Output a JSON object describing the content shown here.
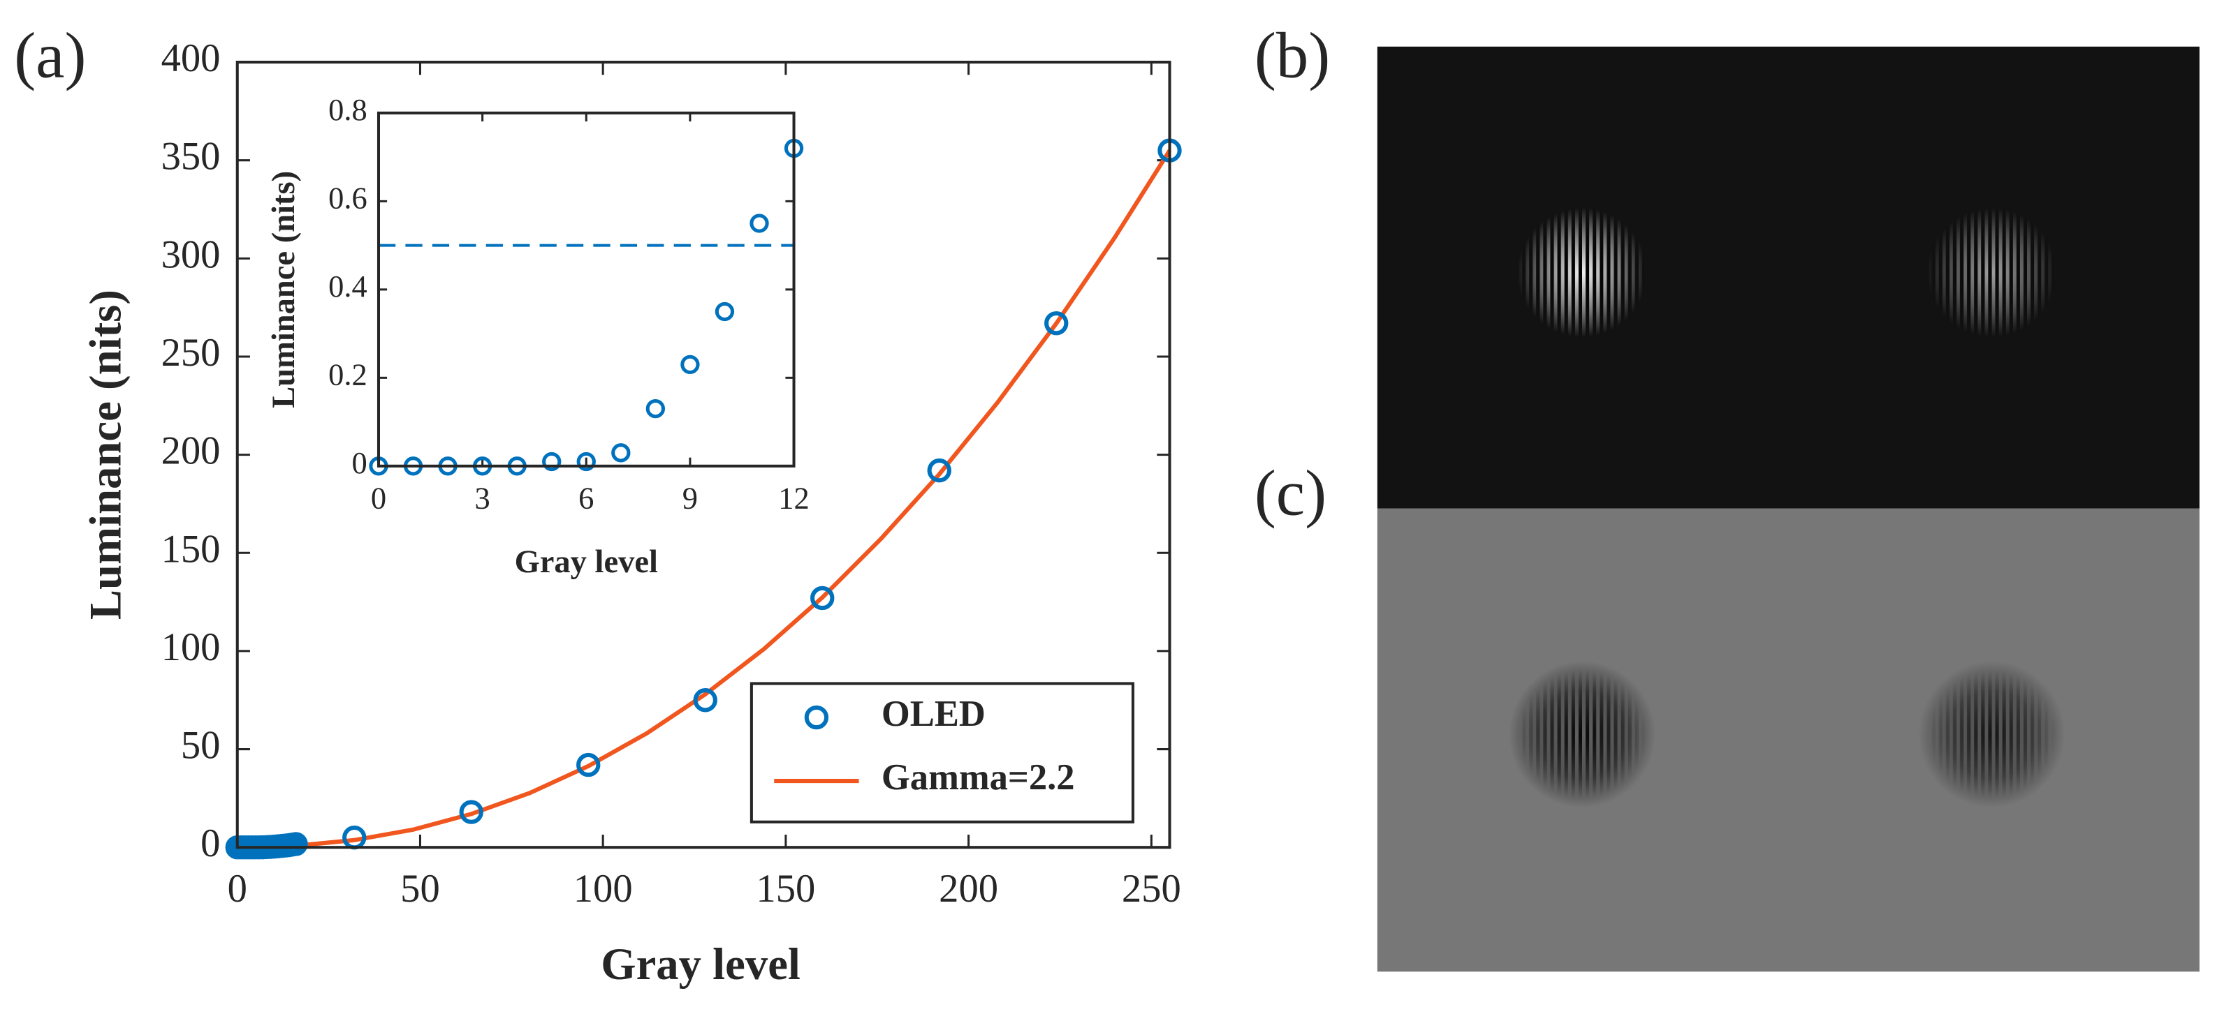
{
  "panel_labels": [
    "(a)",
    "(b)",
    "(c)"
  ],
  "chart_data": [
    {
      "type": "scatter",
      "xlabel": "Gray level",
      "ylabel": "Luminance (nits)",
      "xlim": [
        0,
        255
      ],
      "ylim": [
        0,
        400
      ],
      "xticks": [
        0,
        50,
        100,
        150,
        200,
        250
      ],
      "yticks": [
        0,
        50,
        100,
        150,
        200,
        250,
        300,
        350,
        400
      ],
      "legend": "lower right",
      "series": [
        {
          "name": "OLED",
          "type": "scatter",
          "color": "#0072bd",
          "x": [
            0,
            1,
            2,
            3,
            4,
            5,
            6,
            7,
            8,
            9,
            10,
            11,
            12,
            13,
            14,
            15,
            16,
            32,
            64,
            96,
            128,
            160,
            192,
            224,
            255
          ],
          "values": [
            0,
            0,
            0,
            0,
            0,
            0.01,
            0.01,
            0.03,
            0.13,
            0.23,
            0.35,
            0.55,
            0.72,
            0.9,
            1.1,
            1.4,
            1.7,
            5,
            18,
            42,
            75,
            127,
            192,
            267,
            355
          ]
        },
        {
          "name": "Gamma=2.2",
          "type": "line",
          "color": "#f0561e",
          "x": [
            0,
            16,
            32,
            48,
            64,
            80,
            96,
            112,
            128,
            144,
            160,
            176,
            192,
            208,
            224,
            240,
            255
          ],
          "values": [
            0,
            0.8,
            3.69,
            9.0,
            17.0,
            27.7,
            41.4,
            58.1,
            78.0,
            101.0,
            127.3,
            157.1,
            190.1,
            226.8,
            266.9,
            310.7,
            355
          ]
        }
      ]
    },
    {
      "type": "scatter",
      "xlabel": "Gray level",
      "ylabel": "Luminance (nits)",
      "xlim": [
        0,
        12
      ],
      "ylim": [
        0,
        0.8
      ],
      "xticks": [
        0,
        3,
        6,
        9,
        12
      ],
      "yticks": [
        0,
        0.2,
        0.4,
        0.6,
        0.8
      ],
      "hline": {
        "y": 0.5,
        "color": "#0072bd",
        "linestyle": "dashed"
      },
      "series": [
        {
          "name": "OLED",
          "type": "scatter",
          "color": "#0072bd",
          "x": [
            0,
            1,
            2,
            3,
            4,
            5,
            6,
            7,
            8,
            9,
            10,
            11,
            12
          ],
          "values": [
            0,
            0,
            0,
            0,
            0,
            0.01,
            0.01,
            0.03,
            0.13,
            0.23,
            0.35,
            0.55,
            0.72
          ]
        }
      ]
    }
  ]
}
